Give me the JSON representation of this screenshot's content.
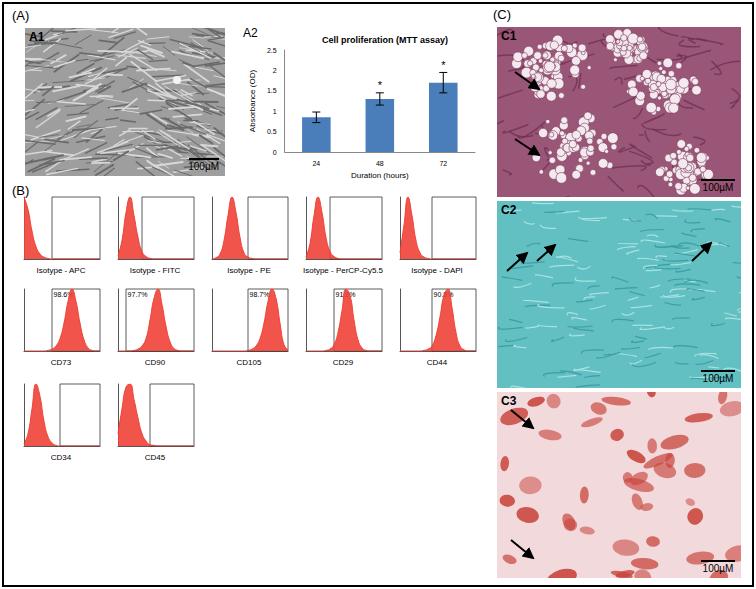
{
  "panel_labels": [
    "(A)",
    "(B)",
    "(C)"
  ],
  "images": [
    {
      "label": "A1",
      "scale_bar": "100µM"
    },
    {
      "label": "C1",
      "scale_bar": "100µM"
    },
    {
      "label": "C2",
      "scale_bar": "100µM"
    },
    {
      "label": "C3",
      "scale_bar": "100µM"
    }
  ],
  "chart_data": [
    {
      "type": "bar",
      "panel": "A2",
      "title": "Cell proliferation (MTT assay)",
      "x_label": "Duration (hours)",
      "y_label": "Absorbance (OD)",
      "categories": [
        "24",
        "48",
        "72"
      ],
      "values": [
        0.85,
        1.3,
        1.7
      ],
      "errors": [
        0.13,
        0.15,
        0.25
      ],
      "annotations": [
        null,
        "*",
        "*"
      ],
      "color": "#4a7ebb",
      "ylim": [
        0,
        2.5
      ],
      "yticks": [
        0,
        0.5,
        1,
        1.5,
        2,
        2.5
      ],
      "grid": false
    },
    {
      "type": "area",
      "title": "Isotype - APC",
      "x": [
        0,
        1,
        2,
        3,
        4,
        5,
        6,
        7,
        8,
        9,
        10,
        11,
        12,
        13,
        14,
        15,
        16,
        17,
        18,
        19
      ],
      "values": [
        100,
        80,
        45,
        20,
        8,
        3,
        1,
        0,
        0,
        0,
        0,
        0,
        0,
        0,
        0,
        0,
        0,
        0,
        0,
        0
      ],
      "color": "#ef4136",
      "xlim": [
        0,
        19
      ],
      "ylim": [
        0,
        100
      ],
      "gate": [
        7,
        19
      ],
      "tick_labels": false
    },
    {
      "type": "area",
      "title": "Isotype - FITC",
      "x": [
        0,
        1,
        2,
        3,
        4,
        5,
        6,
        7,
        8,
        9,
        10,
        11,
        12,
        13,
        14,
        15,
        16,
        17,
        18,
        19
      ],
      "values": [
        5,
        30,
        75,
        100,
        70,
        35,
        12,
        4,
        1,
        0,
        0,
        0,
        0,
        0,
        0,
        0,
        0,
        0,
        0,
        0
      ],
      "color": "#ef4136",
      "xlim": [
        0,
        19
      ],
      "ylim": [
        0,
        100
      ],
      "gate": [
        6,
        19
      ],
      "tick_labels": false
    },
    {
      "type": "area",
      "title": "Isotype - PE",
      "x": [
        0,
        1,
        2,
        3,
        4,
        5,
        6,
        7,
        8,
        9,
        10,
        11,
        12,
        13,
        14,
        15,
        16,
        17,
        18,
        19
      ],
      "values": [
        0,
        2,
        8,
        30,
        70,
        100,
        75,
        35,
        10,
        3,
        1,
        0,
        0,
        0,
        0,
        0,
        0,
        0,
        0,
        0
      ],
      "color": "#ef4136",
      "xlim": [
        0,
        19
      ],
      "ylim": [
        0,
        100
      ],
      "gate": [
        9,
        19
      ],
      "tick_labels": false
    },
    {
      "type": "area",
      "title": "Isotype - PerCP-Cy5.5",
      "x": [
        0,
        1,
        2,
        3,
        4,
        5,
        6,
        7,
        8,
        9,
        10,
        11,
        12,
        13,
        14,
        15,
        16,
        17,
        18,
        19
      ],
      "values": [
        3,
        25,
        70,
        100,
        75,
        35,
        12,
        4,
        1,
        0,
        0,
        0,
        0,
        0,
        0,
        0,
        0,
        0,
        0,
        0
      ],
      "color": "#ef4136",
      "xlim": [
        0,
        19
      ],
      "ylim": [
        0,
        100
      ],
      "gate": [
        6,
        19
      ],
      "tick_labels": false
    },
    {
      "type": "area",
      "title": "Isotype - DAPI",
      "x": [
        0,
        1,
        2,
        3,
        4,
        5,
        6,
        7,
        8,
        9,
        10,
        11,
        12,
        13,
        14,
        15,
        16,
        17,
        18,
        19
      ],
      "values": [
        10,
        55,
        100,
        70,
        30,
        10,
        3,
        1,
        0,
        0,
        0,
        0,
        0,
        0,
        0,
        0,
        0,
        0,
        0,
        0
      ],
      "color": "#ef4136",
      "xlim": [
        0,
        19
      ],
      "ylim": [
        0,
        100
      ],
      "gate": [
        8,
        19
      ],
      "tick_labels": false
    },
    {
      "type": "area",
      "title": "CD73",
      "annotation": "98.6%",
      "x": [
        0,
        1,
        2,
        3,
        4,
        5,
        6,
        7,
        8,
        9,
        10,
        11,
        12,
        13,
        14,
        15,
        16,
        17,
        18,
        19
      ],
      "values": [
        0,
        0,
        0,
        0,
        0,
        0,
        1,
        3,
        8,
        20,
        45,
        80,
        100,
        80,
        45,
        18,
        5,
        1,
        0,
        0
      ],
      "color": "#ef4136",
      "xlim": [
        0,
        19
      ],
      "ylim": [
        0,
        100
      ],
      "gate": [
        7,
        19
      ],
      "tick_labels": false
    },
    {
      "type": "area",
      "title": "CD90",
      "annotation": "97.7%",
      "x": [
        0,
        1,
        2,
        3,
        4,
        5,
        6,
        7,
        8,
        9,
        10,
        11,
        12,
        13,
        14,
        15,
        16,
        17,
        18,
        19
      ],
      "values": [
        0,
        0,
        0,
        0,
        1,
        3,
        8,
        20,
        50,
        85,
        100,
        75,
        40,
        15,
        4,
        1,
        0,
        0,
        0,
        0
      ],
      "color": "#ef4136",
      "xlim": [
        0,
        19
      ],
      "ylim": [
        0,
        100
      ],
      "gate": [
        2,
        19
      ],
      "tick_labels": false
    },
    {
      "type": "area",
      "title": "CD105",
      "annotation": "98.7%",
      "x": [
        0,
        1,
        2,
        3,
        4,
        5,
        6,
        7,
        8,
        9,
        10,
        11,
        12,
        13,
        14,
        15,
        16,
        17,
        18,
        19
      ],
      "values": [
        0,
        0,
        0,
        0,
        0,
        0,
        0,
        0,
        0,
        1,
        3,
        8,
        20,
        45,
        80,
        100,
        85,
        45,
        10,
        2
      ],
      "color": "#ef4136",
      "xlim": [
        0,
        19
      ],
      "ylim": [
        0,
        100
      ],
      "gate": [
        9,
        19
      ],
      "tick_labels": false
    },
    {
      "type": "area",
      "title": "CD29",
      "annotation": "91.6%",
      "x": [
        0,
        1,
        2,
        3,
        4,
        5,
        6,
        7,
        8,
        9,
        10,
        11,
        12,
        13,
        14,
        15,
        16,
        17,
        18,
        19
      ],
      "values": [
        0,
        0,
        0,
        0,
        0,
        1,
        3,
        10,
        30,
        65,
        100,
        90,
        50,
        18,
        5,
        1,
        0,
        0,
        0,
        0
      ],
      "color": "#ef4136",
      "xlim": [
        0,
        19
      ],
      "ylim": [
        0,
        100
      ],
      "gate": [
        7,
        19
      ],
      "tick_labels": false
    },
    {
      "type": "area",
      "title": "CD44",
      "annotation": "90.8%",
      "x": [
        0,
        1,
        2,
        3,
        4,
        5,
        6,
        7,
        8,
        9,
        10,
        11,
        12,
        13,
        14,
        15,
        16,
        17,
        18,
        19
      ],
      "values": [
        0,
        0,
        0,
        0,
        0,
        0,
        1,
        3,
        8,
        25,
        55,
        90,
        100,
        70,
        30,
        8,
        2,
        0,
        0,
        0
      ],
      "color": "#ef4136",
      "xlim": [
        0,
        19
      ],
      "ylim": [
        0,
        100
      ],
      "gate": [
        8,
        19
      ],
      "tick_labels": false
    },
    {
      "type": "area",
      "title": "CD34",
      "x": [
        0,
        1,
        2,
        3,
        4,
        5,
        6,
        7,
        8,
        9,
        10,
        11,
        12,
        13,
        14,
        15,
        16,
        17,
        18,
        19
      ],
      "values": [
        3,
        20,
        60,
        100,
        80,
        40,
        15,
        5,
        1,
        0,
        0,
        0,
        0,
        0,
        0,
        0,
        0,
        0,
        0,
        0
      ],
      "color": "#ef4136",
      "xlim": [
        0,
        19
      ],
      "ylim": [
        0,
        100
      ],
      "gate": [
        9,
        19
      ],
      "tick_labels": false
    },
    {
      "type": "area",
      "title": "CD45",
      "x": [
        0,
        1,
        2,
        3,
        4,
        5,
        6,
        7,
        8,
        9,
        10,
        11,
        12,
        13,
        14,
        15,
        16,
        17,
        18,
        19
      ],
      "values": [
        20,
        60,
        95,
        100,
        75,
        45,
        20,
        8,
        2,
        1,
        0,
        0,
        0,
        0,
        0,
        0,
        0,
        0,
        0,
        0
      ],
      "color": "#ef4136",
      "xlim": [
        0,
        19
      ],
      "ylim": [
        0,
        100
      ],
      "gate": [
        8,
        19
      ],
      "tick_labels": false
    }
  ]
}
